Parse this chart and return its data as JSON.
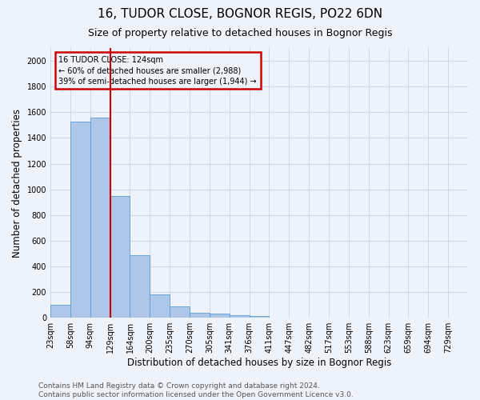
{
  "title1": "16, TUDOR CLOSE, BOGNOR REGIS, PO22 6DN",
  "title2": "Size of property relative to detached houses in Bognor Regis",
  "xlabel": "Distribution of detached houses by size in Bognor Regis",
  "ylabel": "Number of detached properties",
  "bin_labels": [
    "23sqm",
    "58sqm",
    "94sqm",
    "129sqm",
    "164sqm",
    "200sqm",
    "235sqm",
    "270sqm",
    "305sqm",
    "341sqm",
    "376sqm",
    "411sqm",
    "447sqm",
    "482sqm",
    "517sqm",
    "553sqm",
    "588sqm",
    "623sqm",
    "659sqm",
    "694sqm",
    "729sqm"
  ],
  "bar_heights": [
    100,
    1530,
    1560,
    950,
    490,
    185,
    90,
    40,
    35,
    20,
    15,
    0,
    0,
    0,
    0,
    0,
    0,
    0,
    0,
    0,
    0
  ],
  "bar_color": "#aec6e8",
  "bar_edge_color": "#5b9bd5",
  "property_line_bin": 3,
  "property_line_color": "#cc0000",
  "ylim": [
    0,
    2100
  ],
  "yticks": [
    0,
    200,
    400,
    600,
    800,
    1000,
    1200,
    1400,
    1600,
    1800,
    2000
  ],
  "annotation_line1": "16 TUDOR CLOSE: 124sqm",
  "annotation_line2": "← 60% of detached houses are smaller (2,988)",
  "annotation_line3": "39% of semi-detached houses are larger (1,944) →",
  "annotation_box_color": "#cc0000",
  "grid_color": "#c8d4e8",
  "background_color": "#eef2fb",
  "footer_text": "Contains HM Land Registry data © Crown copyright and database right 2024.\nContains public sector information licensed under the Open Government Licence v3.0.",
  "title1_fontsize": 11,
  "title2_fontsize": 9,
  "xlabel_fontsize": 8.5,
  "ylabel_fontsize": 8.5,
  "tick_fontsize": 7,
  "footer_fontsize": 6.5
}
